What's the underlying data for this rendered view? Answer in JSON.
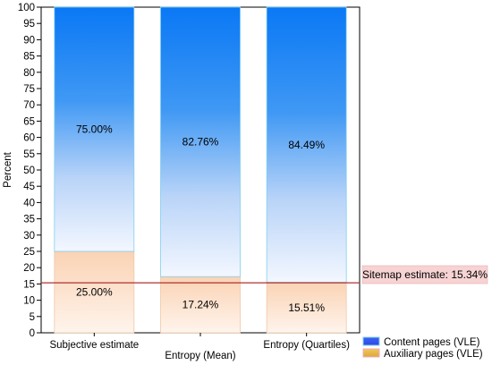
{
  "chart_data": {
    "type": "bar",
    "stacked": true,
    "categories": [
      "Subjective estimate",
      "Entropy (Mean)",
      "Entropy (Quartiles)"
    ],
    "series": [
      {
        "name": "Auxiliary pages (VLE)",
        "values": [
          25.0,
          17.24,
          15.51
        ],
        "labels": [
          "25.00%",
          "17.24%",
          "15.51%"
        ],
        "color": "#f5b98a"
      },
      {
        "name": "Content pages (VLE)",
        "values": [
          75.0,
          82.76,
          84.49
        ],
        "labels": [
          "75.00%",
          "82.76%",
          "84.49%"
        ],
        "color": "#0a7cf5"
      }
    ],
    "ylabel": "Percent",
    "xlabel": "",
    "ylim": [
      0,
      100
    ],
    "yticks": [
      0,
      5,
      10,
      15,
      20,
      25,
      30,
      35,
      40,
      45,
      50,
      55,
      60,
      65,
      70,
      75,
      80,
      85,
      90,
      95,
      100
    ],
    "reference_line": {
      "value": 15.34,
      "label": "Sitemap estimate: 15.34%",
      "color": "#b03030"
    },
    "legend": {
      "position": "bottom-right",
      "items": [
        {
          "label": "Content pages (VLE)",
          "color": "#3d5cf0"
        },
        {
          "label": "Auxiliary pages (VLE)",
          "color": "#e8b84a"
        }
      ]
    },
    "grid": false
  }
}
